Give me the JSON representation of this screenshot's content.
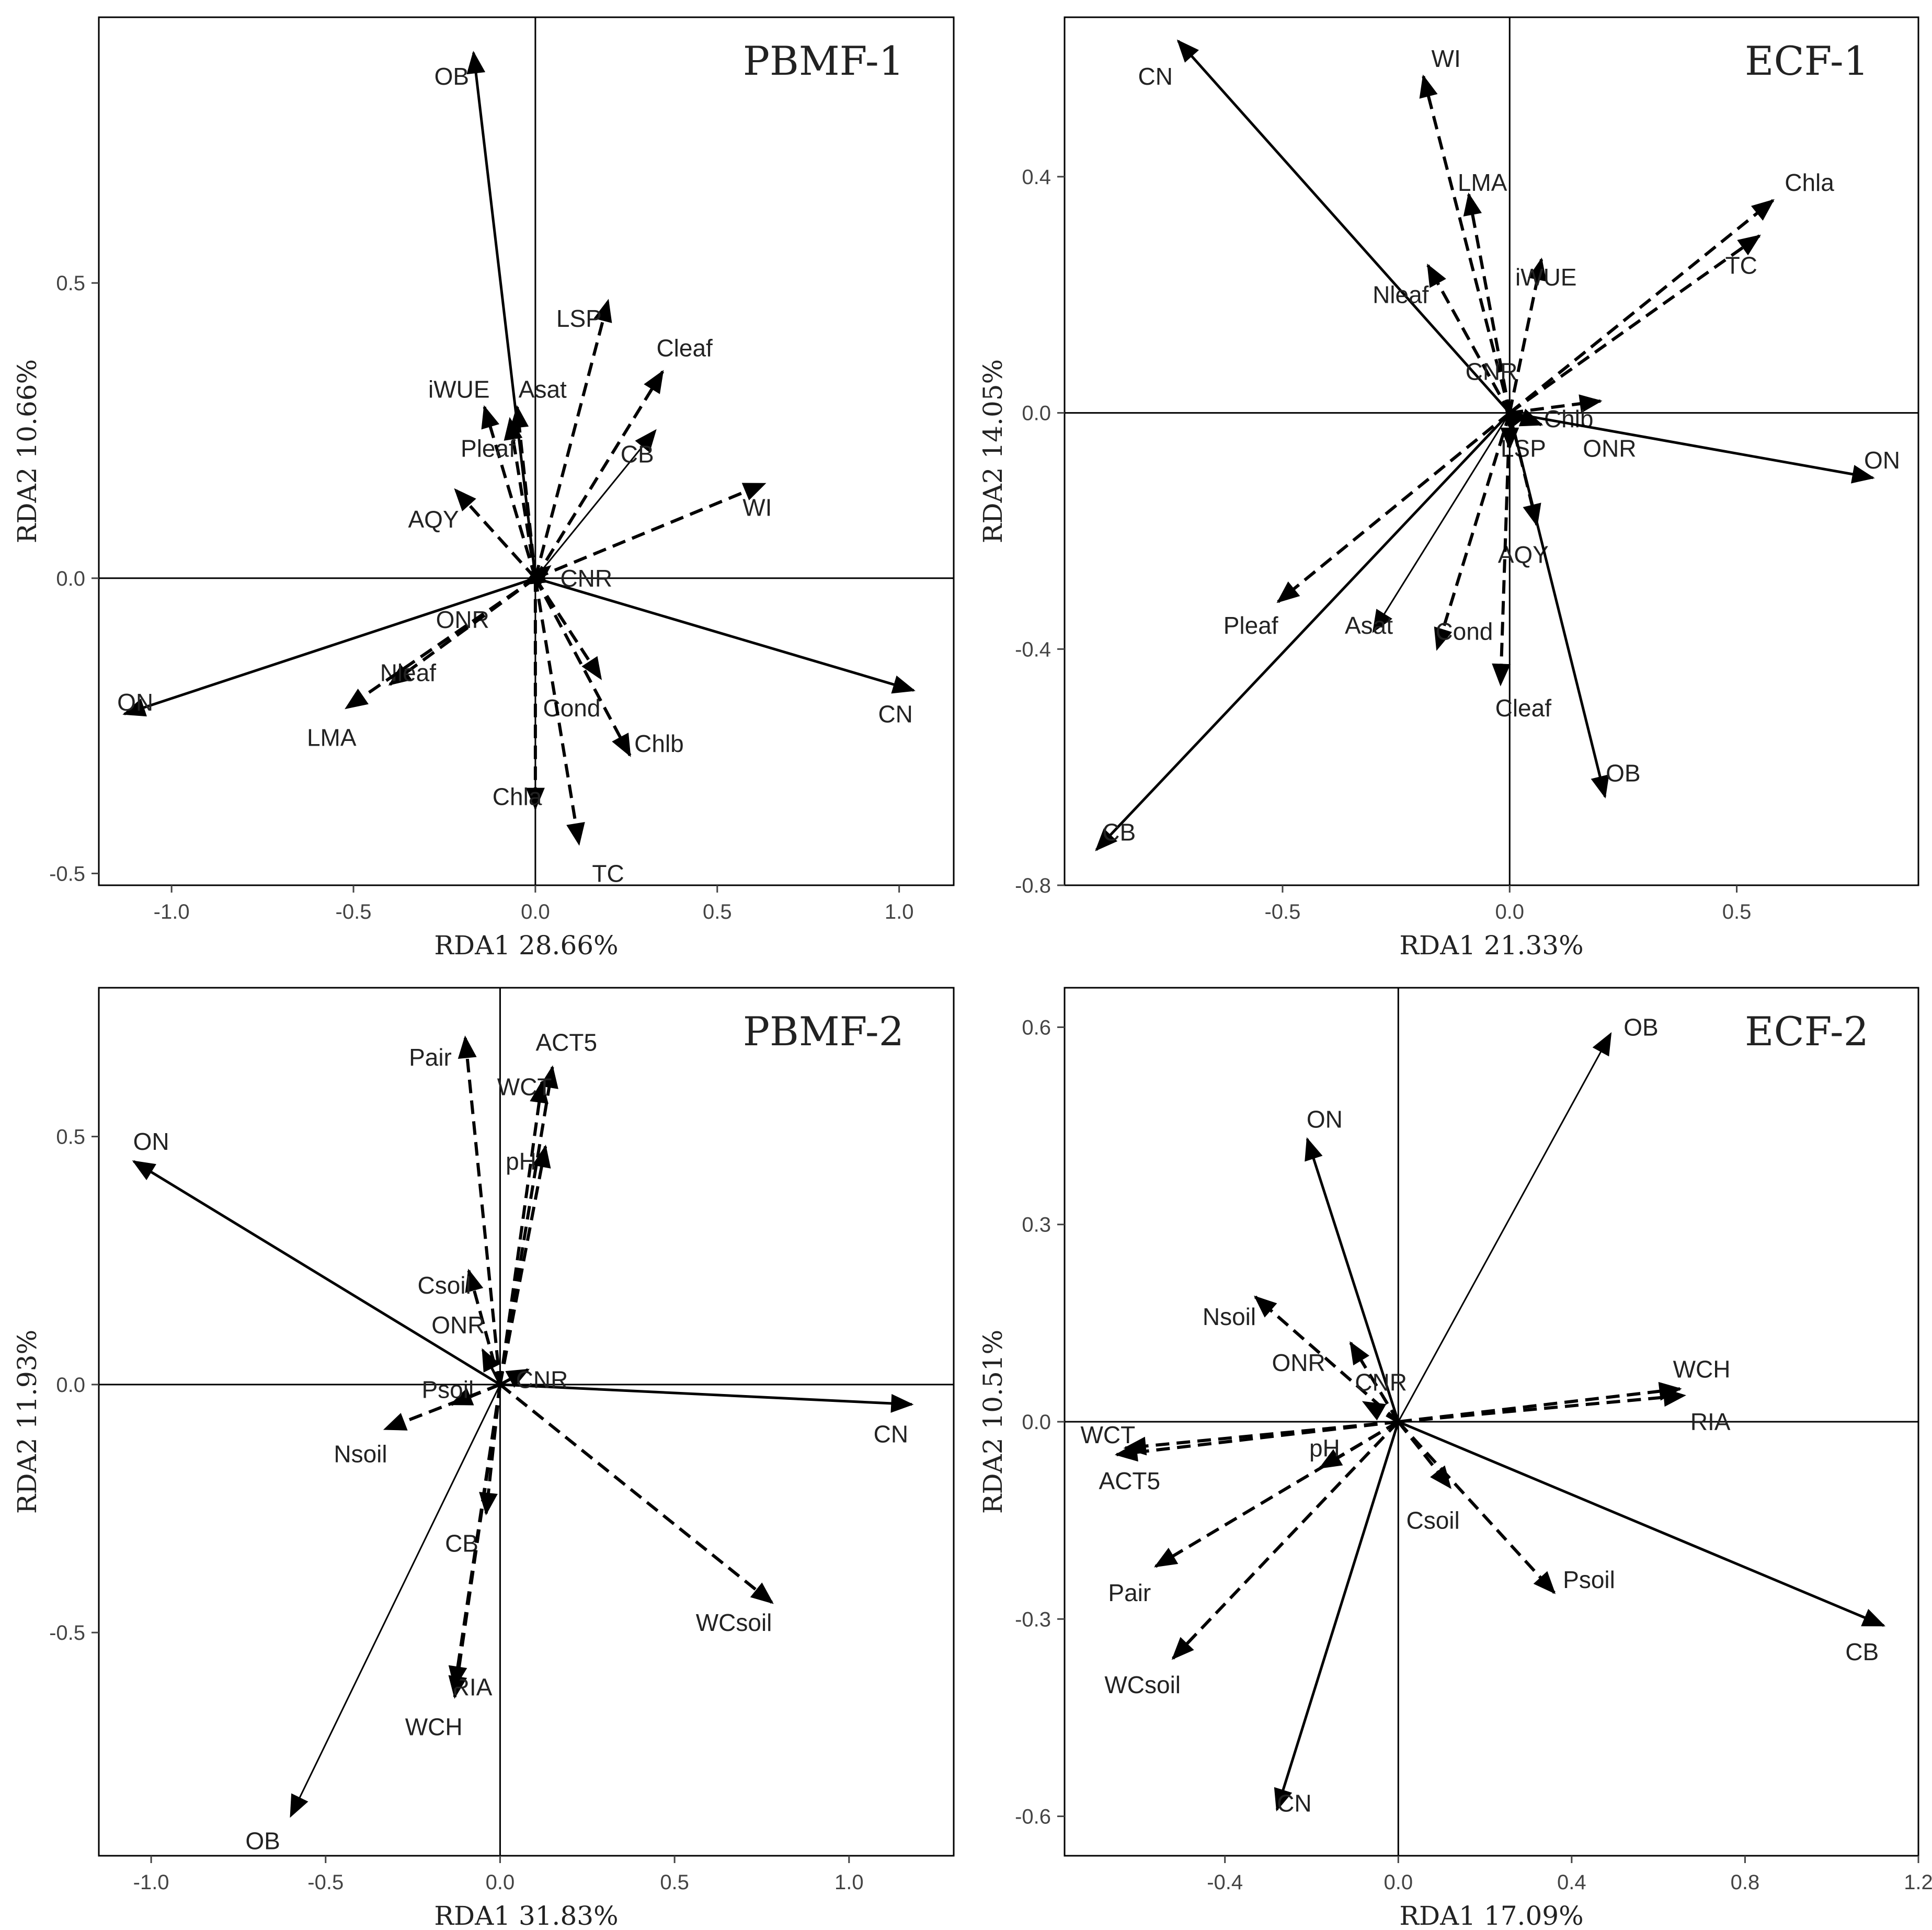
{
  "colors": {
    "ink": "#000000",
    "text": "#222222",
    "tick": "#444444",
    "background": "#ffffff"
  },
  "chart_data": [
    {
      "type": "scatter",
      "title": "PBMF-1",
      "xlabel": "RDA1 28.66%",
      "ylabel": "RDA2 10.66%",
      "xlim": [
        -1.2,
        1.15
      ],
      "ylim": [
        -0.52,
        0.95
      ],
      "xticks": [
        -1.0,
        -0.5,
        0.0,
        0.5,
        1.0
      ],
      "xtick_labels": [
        "-1.0",
        "-0.5",
        "0.0",
        "0.5",
        "1.0"
      ],
      "yticks": [
        -0.5,
        0.0,
        0.5
      ],
      "ytick_labels": [
        "-0.5",
        "0.0",
        "0.5"
      ],
      "arrows": [
        {
          "label": "OB",
          "x": -0.17,
          "y": 0.89,
          "style": "solid",
          "lx": -0.23,
          "ly": 0.85
        },
        {
          "label": "ON",
          "x": -1.13,
          "y": -0.23,
          "style": "solid",
          "lx": -1.1,
          "ly": -0.21
        },
        {
          "label": "CN",
          "x": 1.04,
          "y": -0.19,
          "style": "solid",
          "lx": 0.99,
          "ly": -0.23
        },
        {
          "label": "LSP",
          "x": 0.2,
          "y": 0.47,
          "style": "dashed",
          "lx": 0.12,
          "ly": 0.44
        },
        {
          "label": "Cleaf",
          "x": 0.35,
          "y": 0.35,
          "style": "dashed",
          "lx": 0.41,
          "ly": 0.39
        },
        {
          "label": "CB",
          "x": 0.33,
          "y": 0.25,
          "style": "thin",
          "lx": 0.28,
          "ly": 0.21
        },
        {
          "label": "WI",
          "x": 0.63,
          "y": 0.16,
          "style": "dashed",
          "lx": 0.61,
          "ly": 0.12
        },
        {
          "label": "iWUE",
          "x": -0.14,
          "y": 0.29,
          "style": "dashed",
          "lx": -0.21,
          "ly": 0.32
        },
        {
          "label": "Asat",
          "x": -0.05,
          "y": 0.29,
          "style": "dashed",
          "lx": 0.02,
          "ly": 0.32
        },
        {
          "label": "Pleaf",
          "x": -0.07,
          "y": 0.27,
          "style": "dashed",
          "lx": -0.13,
          "ly": 0.22
        },
        {
          "label": "AQY",
          "x": -0.22,
          "y": 0.15,
          "style": "dashed",
          "lx": -0.28,
          "ly": 0.1
        },
        {
          "label": "CNR",
          "x": 0.04,
          "y": 0.02,
          "style": "dashed",
          "lx": 0.14,
          "ly": 0.0
        },
        {
          "label": "ONR",
          "x": -0.03,
          "y": -0.01,
          "style": "solid",
          "lx": -0.2,
          "ly": -0.07
        },
        {
          "label": "Nleaf",
          "x": -0.4,
          "y": -0.18,
          "style": "dashed",
          "lx": -0.35,
          "ly": -0.16
        },
        {
          "label": "LMA",
          "x": -0.52,
          "y": -0.22,
          "style": "dashed",
          "lx": -0.56,
          "ly": -0.27
        },
        {
          "label": "Cond",
          "x": 0.18,
          "y": -0.17,
          "style": "dashed",
          "lx": 0.1,
          "ly": -0.22
        },
        {
          "label": "Chlb",
          "x": 0.26,
          "y": -0.3,
          "style": "dashed",
          "lx": 0.34,
          "ly": -0.28
        },
        {
          "label": "Chla",
          "x": 0.0,
          "y": -0.39,
          "style": "dashed",
          "lx": -0.05,
          "ly": -0.37
        },
        {
          "label": "TC",
          "x": 0.12,
          "y": -0.45,
          "style": "dashed",
          "lx": 0.2,
          "ly": -0.5
        }
      ]
    },
    {
      "type": "scatter",
      "title": "ECF-1",
      "xlabel": "RDA1 21.33%",
      "ylabel": "RDA2 14.05%",
      "xlim": [
        -0.98,
        0.9
      ],
      "ylim": [
        -0.8,
        0.67
      ],
      "xticks": [
        -0.5,
        0.0,
        0.5
      ],
      "xtick_labels": [
        "-0.5",
        "0.0",
        "0.5"
      ],
      "yticks": [
        -0.8,
        -0.4,
        0.0,
        0.4
      ],
      "ytick_labels": [
        "-0.8",
        "-0.4",
        "0.0",
        "0.4"
      ],
      "arrows": [
        {
          "label": "CN",
          "x": -0.73,
          "y": 0.63,
          "style": "solid",
          "lx": -0.78,
          "ly": 0.57
        },
        {
          "label": "WI",
          "x": -0.19,
          "y": 0.57,
          "style": "dashed",
          "lx": -0.14,
          "ly": 0.6
        },
        {
          "label": "LMA",
          "x": -0.09,
          "y": 0.37,
          "style": "dashed",
          "lx": -0.06,
          "ly": 0.39
        },
        {
          "label": "Chla",
          "x": 0.58,
          "y": 0.36,
          "style": "dashed",
          "lx": 0.66,
          "ly": 0.39
        },
        {
          "label": "TC",
          "x": 0.55,
          "y": 0.3,
          "style": "dashed",
          "lx": 0.51,
          "ly": 0.25
        },
        {
          "label": "iWUE",
          "x": 0.07,
          "y": 0.26,
          "style": "dashed",
          "lx": 0.08,
          "ly": 0.23
        },
        {
          "label": "Nleaf",
          "x": -0.18,
          "y": 0.25,
          "style": "dashed",
          "lx": -0.24,
          "ly": 0.2
        },
        {
          "label": "CNR",
          "x": -0.01,
          "y": 0.01,
          "style": "dashed",
          "lx": -0.04,
          "ly": 0.07
        },
        {
          "label": "Chlb",
          "x": 0.2,
          "y": 0.02,
          "style": "dashed",
          "lx": 0.13,
          "ly": -0.01
        },
        {
          "label": "ONR",
          "x": 0.07,
          "y": -0.02,
          "style": "dashed",
          "lx": 0.22,
          "ly": -0.06
        },
        {
          "label": "ON",
          "x": 0.8,
          "y": -0.11,
          "style": "solid",
          "lx": 0.82,
          "ly": -0.08
        },
        {
          "label": "LSP",
          "x": 0.0,
          "y": -0.06,
          "style": "dashed",
          "lx": 0.03,
          "ly": -0.06
        },
        {
          "label": "AQY",
          "x": 0.06,
          "y": -0.19,
          "style": "dashed",
          "lx": 0.03,
          "ly": -0.24
        },
        {
          "label": "Pleaf",
          "x": -0.51,
          "y": -0.32,
          "style": "dashed",
          "lx": -0.57,
          "ly": -0.36
        },
        {
          "label": "Asat",
          "x": -0.3,
          "y": -0.37,
          "style": "thin",
          "lx": -0.31,
          "ly": -0.36
        },
        {
          "label": "Cond",
          "x": -0.16,
          "y": -0.4,
          "style": "dashed",
          "lx": -0.1,
          "ly": -0.37
        },
        {
          "label": "Cleaf",
          "x": -0.02,
          "y": -0.46,
          "style": "dashed",
          "lx": 0.03,
          "ly": -0.5
        },
        {
          "label": "OB",
          "x": 0.21,
          "y": -0.65,
          "style": "solid",
          "lx": 0.25,
          "ly": -0.61
        },
        {
          "label": "CB",
          "x": -0.91,
          "y": -0.74,
          "style": "solid",
          "lx": -0.86,
          "ly": -0.71
        }
      ]
    },
    {
      "type": "scatter",
      "title": "PBMF-2",
      "xlabel": "RDA1 31.83%",
      "ylabel": "RDA2 11.93%",
      "xlim": [
        -1.15,
        1.3
      ],
      "ylim": [
        -0.95,
        0.8
      ],
      "xticks": [
        -1.0,
        -0.5,
        0.0,
        0.5,
        1.0
      ],
      "xtick_labels": [
        "-1.0",
        "-0.5",
        "0.0",
        "0.5",
        "1.0"
      ],
      "yticks": [
        -0.5,
        0.0,
        0.5
      ],
      "ytick_labels": [
        "-0.5",
        "0.0",
        "0.5"
      ],
      "arrows": [
        {
          "label": "ON",
          "x": -1.05,
          "y": 0.45,
          "style": "solid",
          "lx": -1.0,
          "ly": 0.49
        },
        {
          "label": "CN",
          "x": 1.18,
          "y": -0.04,
          "style": "solid",
          "lx": 1.12,
          "ly": -0.1
        },
        {
          "label": "Pair",
          "x": -0.1,
          "y": 0.7,
          "style": "dashed",
          "lx": -0.2,
          "ly": 0.66
        },
        {
          "label": "ACT5",
          "x": 0.15,
          "y": 0.64,
          "style": "dashed",
          "lx": 0.19,
          "ly": 0.69
        },
        {
          "label": "WCT",
          "x": 0.12,
          "y": 0.61,
          "style": "dashed",
          "lx": 0.07,
          "ly": 0.6
        },
        {
          "label": "pH",
          "x": 0.13,
          "y": 0.48,
          "style": "dashed",
          "lx": 0.06,
          "ly": 0.45
        },
        {
          "label": "Csoil",
          "x": -0.09,
          "y": 0.23,
          "style": "dashed",
          "lx": -0.16,
          "ly": 0.2
        },
        {
          "label": "ONR",
          "x": -0.05,
          "y": 0.07,
          "style": "solid",
          "lx": -0.12,
          "ly": 0.12
        },
        {
          "label": "CNR",
          "x": 0.08,
          "y": 0.03,
          "style": "dashed",
          "lx": 0.12,
          "ly": 0.01
        },
        {
          "label": "Psoil",
          "x": -0.14,
          "y": -0.04,
          "style": "dashed",
          "lx": -0.15,
          "ly": -0.01
        },
        {
          "label": "Nsoil",
          "x": -0.33,
          "y": -0.09,
          "style": "dashed",
          "lx": -0.4,
          "ly": -0.14
        },
        {
          "label": "CB",
          "x": -0.04,
          "y": -0.26,
          "style": "dashed",
          "lx": -0.11,
          "ly": -0.32
        },
        {
          "label": "WCsoil",
          "x": 0.78,
          "y": -0.44,
          "style": "dashed",
          "lx": 0.67,
          "ly": -0.48
        },
        {
          "label": "RIA",
          "x": -0.13,
          "y": -0.63,
          "style": "dashed",
          "lx": -0.08,
          "ly": -0.61
        },
        {
          "label": "WCH",
          "x": -0.13,
          "y": -0.61,
          "style": "dashed",
          "lx": -0.19,
          "ly": -0.69
        },
        {
          "label": "OB",
          "x": -0.6,
          "y": -0.87,
          "style": "thin",
          "lx": -0.68,
          "ly": -0.92
        }
      ]
    },
    {
      "type": "scatter",
      "title": "ECF-2",
      "xlabel": "RDA1 17.09%",
      "ylabel": "RDA2 10.51%",
      "xlim": [
        -0.77,
        1.2
      ],
      "ylim": [
        -0.66,
        0.66
      ],
      "xticks": [
        -0.4,
        0.0,
        0.4,
        0.8,
        1.2
      ],
      "xtick_labels": [
        "-0.4",
        "0.0",
        "0.4",
        "0.8",
        "1.2"
      ],
      "yticks": [
        -0.6,
        -0.3,
        0.0,
        0.3,
        0.6
      ],
      "ytick_labels": [
        "-0.6",
        "-0.3",
        "0.0",
        "0.3",
        "0.6"
      ],
      "arrows": [
        {
          "label": "OB",
          "x": 0.49,
          "y": 0.59,
          "style": "thin",
          "lx": 0.56,
          "ly": 0.6
        },
        {
          "label": "ON",
          "x": -0.21,
          "y": 0.43,
          "style": "solid",
          "lx": -0.17,
          "ly": 0.46
        },
        {
          "label": "Nsoil",
          "x": -0.33,
          "y": 0.19,
          "style": "dashed",
          "lx": -0.39,
          "ly": 0.16
        },
        {
          "label": "ONR",
          "x": -0.11,
          "y": 0.12,
          "style": "dashed",
          "lx": -0.23,
          "ly": 0.09
        },
        {
          "label": "CNR",
          "x": -0.08,
          "y": 0.03,
          "style": "dashed",
          "lx": -0.04,
          "ly": 0.06
        },
        {
          "label": "WCH",
          "x": 0.65,
          "y": 0.05,
          "style": "dashed",
          "lx": 0.7,
          "ly": 0.08
        },
        {
          "label": "RIA",
          "x": 0.66,
          "y": 0.04,
          "style": "dashed",
          "lx": 0.72,
          "ly": 0.0
        },
        {
          "label": "WCT",
          "x": -0.65,
          "y": -0.05,
          "style": "dashed",
          "lx": -0.67,
          "ly": -0.02
        },
        {
          "label": "ACT5",
          "x": -0.63,
          "y": -0.04,
          "style": "dashed",
          "lx": -0.62,
          "ly": -0.09
        },
        {
          "label": "pH",
          "x": -0.18,
          "y": -0.07,
          "style": "dashed",
          "lx": -0.17,
          "ly": -0.04
        },
        {
          "label": "Csoil",
          "x": 0.12,
          "y": -0.1,
          "style": "dashed",
          "lx": 0.08,
          "ly": -0.15
        },
        {
          "label": "Pair",
          "x": -0.56,
          "y": -0.22,
          "style": "dashed",
          "lx": -0.62,
          "ly": -0.26
        },
        {
          "label": "Psoil",
          "x": 0.36,
          "y": -0.26,
          "style": "dashed",
          "lx": 0.44,
          "ly": -0.24
        },
        {
          "label": "WCsoil",
          "x": -0.52,
          "y": -0.36,
          "style": "dashed",
          "lx": -0.59,
          "ly": -0.4
        },
        {
          "label": "CB",
          "x": 1.12,
          "y": -0.31,
          "style": "solid",
          "lx": 1.07,
          "ly": -0.35
        },
        {
          "label": "CN",
          "x": -0.28,
          "y": -0.59,
          "style": "solid",
          "lx": -0.24,
          "ly": -0.58
        }
      ]
    }
  ]
}
